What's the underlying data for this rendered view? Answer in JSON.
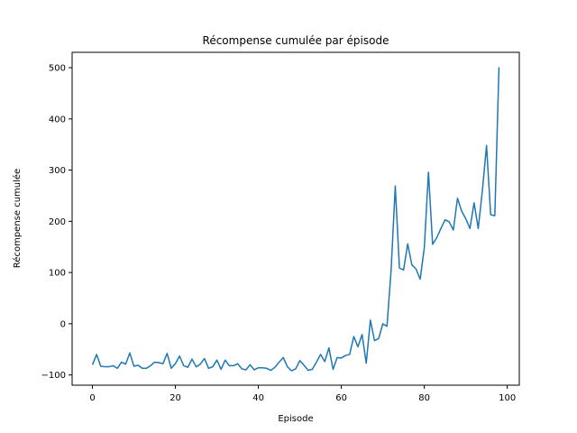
{
  "chart_data": {
    "type": "line",
    "title": "Récompense cumulée par épisode",
    "xlabel": "Episode",
    "ylabel": "Récompense cumulée",
    "xlim": [
      -4.9,
      102.9
    ],
    "ylim": [
      -120,
      530
    ],
    "xticks": [
      0,
      20,
      40,
      60,
      80,
      100
    ],
    "yticks": [
      -100,
      0,
      100,
      200,
      300,
      400,
      500
    ],
    "grid": false,
    "legend": "none",
    "series": [
      {
        "color": "#1f77b4",
        "x": [
          0,
          1,
          2,
          3,
          4,
          5,
          6,
          7,
          8,
          9,
          10,
          11,
          12,
          13,
          14,
          15,
          16,
          17,
          18,
          19,
          20,
          21,
          22,
          23,
          24,
          25,
          26,
          27,
          28,
          29,
          30,
          31,
          32,
          33,
          34,
          35,
          36,
          37,
          38,
          39,
          40,
          41,
          42,
          43,
          44,
          45,
          46,
          47,
          48,
          49,
          50,
          51,
          52,
          53,
          54,
          55,
          56,
          57,
          58,
          59,
          60,
          61,
          62,
          63,
          64,
          65,
          66,
          67,
          68,
          69,
          70,
          71,
          72,
          73,
          74,
          75,
          76,
          77,
          78,
          79,
          80,
          81,
          82,
          83,
          84,
          85,
          86,
          87,
          88,
          89,
          90,
          91,
          92,
          93,
          94,
          95,
          96,
          97,
          98
        ],
        "y": [
          -80,
          -60,
          -83,
          -84,
          -84,
          -82,
          -87,
          -75,
          -79,
          -57,
          -83,
          -81,
          -87,
          -87,
          -82,
          -75,
          -76,
          -78,
          -58,
          -87,
          -78,
          -63,
          -82,
          -85,
          -69,
          -84,
          -79,
          -68,
          -87,
          -84,
          -71,
          -89,
          -71,
          -82,
          -82,
          -78,
          -88,
          -90,
          -80,
          -90,
          -86,
          -86,
          -87,
          -91,
          -85,
          -75,
          -66,
          -84,
          -92,
          -88,
          -72,
          -81,
          -91,
          -89,
          -75,
          -60,
          -74,
          -47,
          -89,
          -66,
          -67,
          -62,
          -60,
          -25,
          -45,
          -21,
          -77,
          7,
          -33,
          -29,
          0,
          -5,
          105,
          269,
          109,
          105,
          156,
          115,
          107,
          87,
          148,
          296,
          155,
          168,
          186,
          203,
          199,
          183,
          245,
          220,
          205,
          186,
          236,
          186,
          260,
          348,
          213,
          211,
          501
        ]
      }
    ]
  }
}
